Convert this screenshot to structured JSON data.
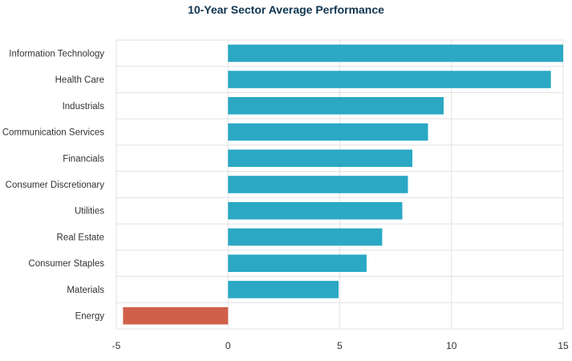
{
  "chart_data": {
    "type": "bar",
    "orientation": "horizontal",
    "title": "10-Year Sector Average Performance",
    "xlabel": "",
    "ylabel": "",
    "categories": [
      "Information Technology",
      "Health Care",
      "Industrials",
      "Communication Services",
      "Financials",
      "Consumer Discretionary",
      "Utilities",
      "Real Estate",
      "Consumer Staples",
      "Materials",
      "Energy"
    ],
    "values": [
      15.0,
      14.45,
      9.65,
      8.95,
      8.25,
      8.05,
      7.8,
      6.9,
      6.2,
      4.95,
      -4.7
    ],
    "xlim": [
      -5,
      15
    ],
    "xticks": [
      -5,
      0,
      5,
      10,
      15
    ],
    "grid": true,
    "legend": "none",
    "colors": {
      "positive": "#2aa8c4",
      "negative": "#d0604a",
      "grid": "#e2e2e2",
      "title": "#0f3550",
      "text": "#333333"
    }
  }
}
